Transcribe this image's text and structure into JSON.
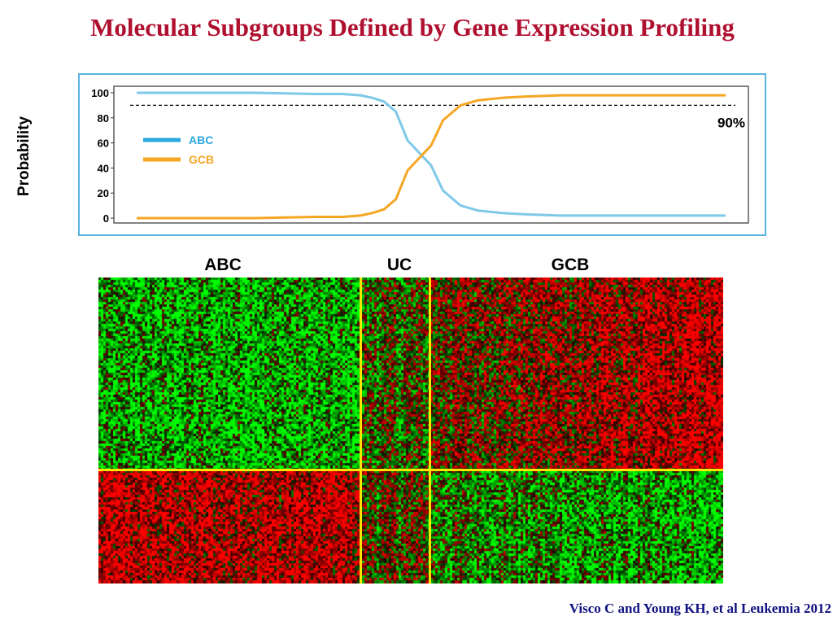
{
  "title": "Molecular Subgroups Defined by Gene Expression Profiling",
  "citation": "Visco C and Young KH, et al Leukemia 2012",
  "colors": {
    "title": "#b01030",
    "citation": "#101080",
    "abc": "#7ec8e8",
    "abc_legend": "#29a8e0",
    "gcb": "#f5a623",
    "panel_border": "#5ab4e0",
    "separator": "#ffe400",
    "heat_up": "#ff1a1a",
    "heat_down": "#1aff1a"
  },
  "chart_data": [
    {
      "type": "line",
      "ylabel": "Probability",
      "ylim": [
        0,
        100
      ],
      "yticks": [
        "100",
        "80",
        "60",
        "40",
        "20",
        "0"
      ],
      "xlabel": "",
      "threshold": {
        "value": 90,
        "label": "90%",
        "style": "dashed"
      },
      "legend": {
        "placement": "left",
        "entries": [
          "ABC",
          "GCB"
        ]
      },
      "x": [
        0,
        10,
        20,
        30,
        35,
        38,
        40,
        42,
        44,
        46,
        48,
        50,
        52,
        55,
        58,
        62,
        66,
        72,
        80,
        90,
        100
      ],
      "series": [
        {
          "name": "ABC",
          "values": [
            100,
            100,
            100,
            99,
            99,
            98,
            96,
            93,
            85,
            62,
            52,
            42,
            22,
            10,
            6,
            4,
            3,
            2,
            2,
            2,
            2
          ]
        },
        {
          "name": "GCB",
          "values": [
            0,
            0,
            0,
            1,
            1,
            2,
            4,
            7,
            15,
            38,
            48,
            58,
            78,
            90,
            94,
            96,
            97,
            98,
            98,
            98,
            98
          ]
        }
      ]
    },
    {
      "type": "heatmap",
      "column_groups": [
        "ABC",
        "UC",
        "GCB"
      ],
      "column_group_fractions": [
        0.42,
        0.11,
        0.47
      ],
      "row_block_fractions": [
        0.63,
        0.37
      ],
      "pattern": {
        "top_block": {
          "ABC": "mostly-green",
          "UC": "mixed",
          "GCB": "mostly-red"
        },
        "bottom_block": {
          "ABC": "mostly-red",
          "UC": "mixed",
          "GCB": "mostly-green"
        }
      }
    }
  ]
}
